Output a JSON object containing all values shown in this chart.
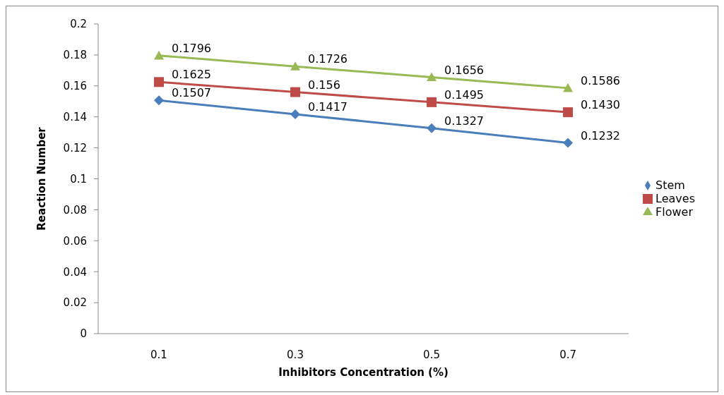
{
  "chart_data": {
    "type": "line",
    "xlabel": "Inhibitors Concentration (%)",
    "ylabel": "Reaction Number",
    "categories": [
      "0.1",
      "0.3",
      "0.5",
      "0.7"
    ],
    "series": [
      {
        "name": "Stem",
        "color": "#4a7ebb",
        "marker": "diamond",
        "values": [
          0.1507,
          0.1417,
          0.1327,
          0.1232
        ],
        "value_labels": [
          "0.1507",
          "0.1417",
          "0.1327",
          "0.1232"
        ]
      },
      {
        "name": "Leaves",
        "color": "#be4b48",
        "marker": "square",
        "values": [
          0.1625,
          0.156,
          0.1495,
          0.143
        ],
        "value_labels": [
          "0.1625",
          "0.156",
          "0.1495",
          "0.1430"
        ]
      },
      {
        "name": "Flower",
        "color": "#98b954",
        "marker": "triangle",
        "values": [
          0.1796,
          0.1726,
          0.1656,
          0.1586
        ],
        "value_labels": [
          "0.1796",
          "0.1726",
          "0.1656",
          "0.1586"
        ]
      }
    ],
    "ylim": [
      0,
      0.2
    ],
    "yticks": [
      0,
      0.02,
      0.04,
      0.06,
      0.08,
      0.1,
      0.12,
      0.14,
      0.16,
      0.18,
      0.2
    ],
    "grid": false,
    "legend": "right",
    "line_style": "solid"
  }
}
